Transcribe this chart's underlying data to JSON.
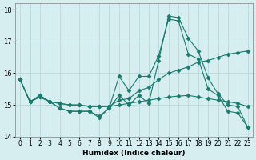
{
  "xlabel": "Humidex (Indice chaleur)",
  "ylabel": "",
  "background_color": "#d6eef0",
  "grid_color": "#b0d4d8",
  "line_color": "#1a7a6e",
  "xlim": [
    -0.5,
    23.5
  ],
  "ylim": [
    14.0,
    18.2
  ],
  "yticks": [
    14,
    15,
    16,
    17,
    18
  ],
  "xticks": [
    0,
    1,
    2,
    3,
    4,
    5,
    6,
    7,
    8,
    9,
    10,
    11,
    12,
    13,
    14,
    15,
    16,
    17,
    18,
    19,
    20,
    21,
    22,
    23
  ],
  "series": {
    "max": [
      15.8,
      15.1,
      15.3,
      15.1,
      14.9,
      14.8,
      14.8,
      14.8,
      14.6,
      14.9,
      15.3,
      15.0,
      15.3,
      15.05,
      16.4,
      17.8,
      17.75,
      17.1,
      16.7,
      15.85,
      15.35,
      15.0,
      14.95,
      14.3
    ],
    "mid": [
      15.8,
      15.1,
      15.3,
      15.1,
      14.9,
      14.8,
      14.8,
      14.8,
      14.65,
      14.9,
      15.9,
      15.45,
      15.9,
      15.9,
      16.55,
      17.7,
      17.65,
      16.6,
      16.45,
      15.5,
      15.3,
      14.8,
      14.75,
      14.3
    ],
    "line1": [
      15.8,
      15.1,
      15.25,
      15.1,
      15.05,
      15.0,
      15.0,
      14.95,
      14.95,
      14.95,
      15.15,
      15.2,
      15.45,
      15.55,
      15.8,
      16.0,
      16.1,
      16.2,
      16.35,
      16.4,
      16.5,
      16.6,
      16.65,
      16.7
    ],
    "line2": [
      15.8,
      15.1,
      15.25,
      15.1,
      15.05,
      15.0,
      15.0,
      14.95,
      14.95,
      14.95,
      15.0,
      15.05,
      15.1,
      15.15,
      15.2,
      15.25,
      15.28,
      15.3,
      15.25,
      15.2,
      15.15,
      15.1,
      15.05,
      14.95
    ]
  }
}
